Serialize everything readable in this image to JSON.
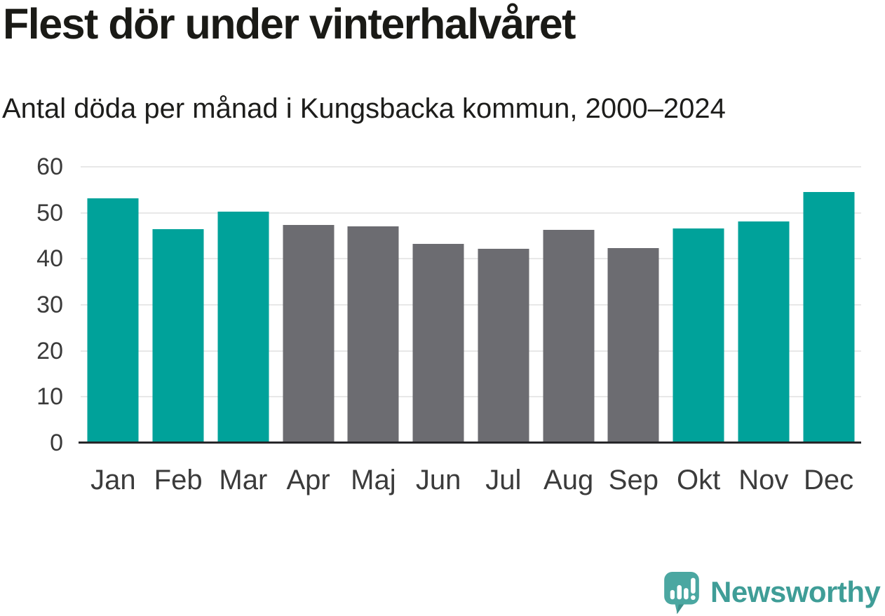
{
  "title": "Flest dör under vinterhalvåret",
  "subtitle": "Antal döda per månad i Kungsbacka kommun, 2000–2024",
  "chart_data": {
    "type": "bar",
    "categories": [
      "Jan",
      "Feb",
      "Mar",
      "Apr",
      "Maj",
      "Jun",
      "Jul",
      "Aug",
      "Sep",
      "Okt",
      "Nov",
      "Dec"
    ],
    "values": [
      53.1,
      46.4,
      50.2,
      47.3,
      47.1,
      43.2,
      42.2,
      46.3,
      42.4,
      46.6,
      48.2,
      54.5
    ],
    "bar_colors": [
      "#00a29a",
      "#00a29a",
      "#00a29a",
      "#6c6c71",
      "#6c6c71",
      "#6c6c71",
      "#6c6c71",
      "#6c6c71",
      "#6c6c71",
      "#00a29a",
      "#00a29a",
      "#00a29a"
    ],
    "highlighted_months": [
      "Jan",
      "Feb",
      "Mar",
      "Okt",
      "Nov",
      "Dec"
    ],
    "title": "Flest dör under vinterhalvåret",
    "xlabel": "",
    "ylabel": "",
    "ylim": [
      0,
      60
    ],
    "yticks": [
      0,
      10,
      20,
      30,
      40,
      50,
      60
    ],
    "grid": true,
    "legend": false
  },
  "colors": {
    "winter_bar": "#00a29a",
    "summer_bar": "#6c6c71",
    "gridline": "#e8e8e8",
    "axis_line": "#27272a",
    "tick_label": "#3a3a3a",
    "title_text": "#1a1a16",
    "logo": "#3f9d97"
  },
  "footer": {
    "logo_text": "Newsworthy",
    "logo_icon": "newsworthy-speech-bubble-bar-chart-icon"
  }
}
